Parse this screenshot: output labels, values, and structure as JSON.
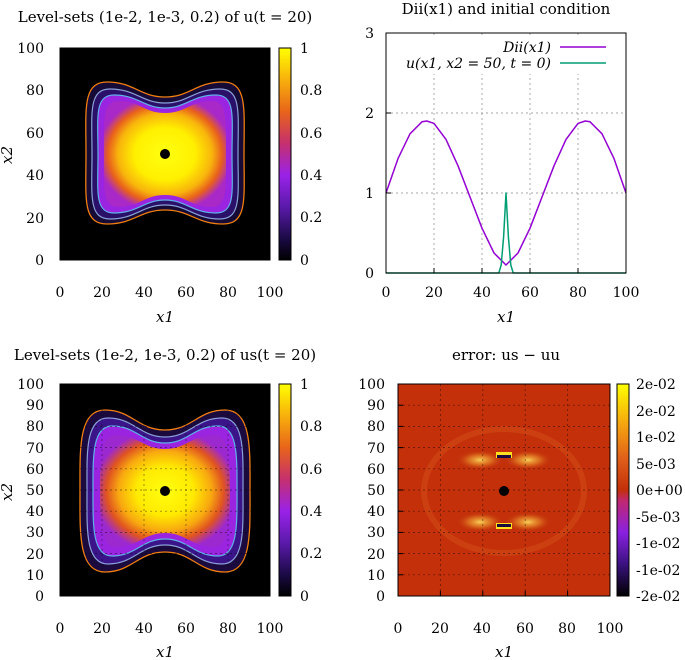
{
  "chart_data": [
    {
      "id": "p1",
      "type": "heatmap",
      "title": "Level-sets (1e-2, 1e-3, 0.2) of u(t = 20)",
      "xlabel": "x1",
      "ylabel": "x2",
      "xlim": [
        0,
        100
      ],
      "ylim": [
        0,
        100
      ],
      "xticks": [
        "0",
        "20",
        "40",
        "60",
        "80",
        "100"
      ],
      "yticks": [
        "0",
        "20",
        "40",
        "60",
        "80",
        "100"
      ],
      "colorbar": {
        "range": [
          0,
          1
        ],
        "ticks": [
          "0",
          "0.2",
          "0.4",
          "0.6",
          "0.8",
          "1"
        ]
      },
      "contour_levels": [
        0.01,
        0.001,
        0.2
      ],
      "marker_point": [
        50,
        50
      ],
      "grid": false
    },
    {
      "id": "p2",
      "type": "line",
      "title": "Dii(x1) and initial condition",
      "xlabel": "x1",
      "ylabel": "",
      "xlim": [
        0,
        100
      ],
      "ylim": [
        0,
        3
      ],
      "xticks": [
        "0",
        "20",
        "40",
        "60",
        "80",
        "100"
      ],
      "yticks": [
        "0",
        "1",
        "2",
        "3"
      ],
      "grid": true,
      "legend": "top-right",
      "series": [
        {
          "name": "Dii(x1)",
          "color": "#9400d3",
          "x": [
            0,
            5,
            10,
            15,
            17,
            20,
            25,
            30,
            35,
            40,
            45,
            50,
            55,
            60,
            65,
            70,
            75,
            80,
            83,
            85,
            90,
            95,
            100
          ],
          "y": [
            1.0,
            1.43,
            1.74,
            1.89,
            1.9,
            1.87,
            1.67,
            1.34,
            0.95,
            0.56,
            0.25,
            0.1,
            0.25,
            0.56,
            0.95,
            1.34,
            1.67,
            1.87,
            1.9,
            1.89,
            1.74,
            1.43,
            1.0
          ]
        },
        {
          "name": "u(x1, x2 = 50, t = 0)",
          "color": "#009e73",
          "x": [
            0,
            46,
            47,
            48,
            49,
            50,
            51,
            52,
            53,
            54,
            100
          ],
          "y": [
            0,
            0,
            0,
            0.1,
            0.45,
            1.0,
            0.45,
            0.1,
            0,
            0,
            0
          ]
        }
      ]
    },
    {
      "id": "p3",
      "type": "heatmap",
      "title": "Level-sets (1e-2, 1e-3, 0.2) of us(t = 20)",
      "xlabel": "x1",
      "ylabel": "x2",
      "xlim": [
        0,
        100
      ],
      "ylim": [
        0,
        100
      ],
      "xticks": [
        "0",
        "20",
        "40",
        "60",
        "80",
        "100"
      ],
      "yticks": [
        "0",
        "10",
        "20",
        "30",
        "40",
        "50",
        "60",
        "70",
        "80",
        "90",
        "100"
      ],
      "colorbar": {
        "range": [
          0,
          1
        ],
        "ticks": [
          "0",
          "0.2",
          "0.4",
          "0.6",
          "0.8",
          "1"
        ]
      },
      "contour_levels": [
        0.01,
        0.001,
        0.2
      ],
      "marker_point": [
        50,
        50
      ],
      "grid": true
    },
    {
      "id": "p4",
      "type": "heatmap",
      "title": "error: us − uu",
      "xlabel": "x1",
      "ylabel": "",
      "xlim": [
        0,
        100
      ],
      "ylim": [
        0,
        100
      ],
      "xticks": [
        "0",
        "20",
        "40",
        "60",
        "80",
        "100"
      ],
      "yticks": [
        "0",
        "10",
        "20",
        "30",
        "40",
        "50",
        "60",
        "70",
        "80",
        "90",
        "100"
      ],
      "colorbar": {
        "range": [
          -0.02,
          0.02
        ],
        "ticks": [
          "-2e-02",
          "-1e-02",
          "-1e-02",
          "-5e-03",
          "0e+00",
          "5e-03",
          "1e-02",
          "2e-02",
          "2e-02"
        ]
      },
      "marker_point": [
        50,
        50
      ],
      "grid": true
    }
  ]
}
